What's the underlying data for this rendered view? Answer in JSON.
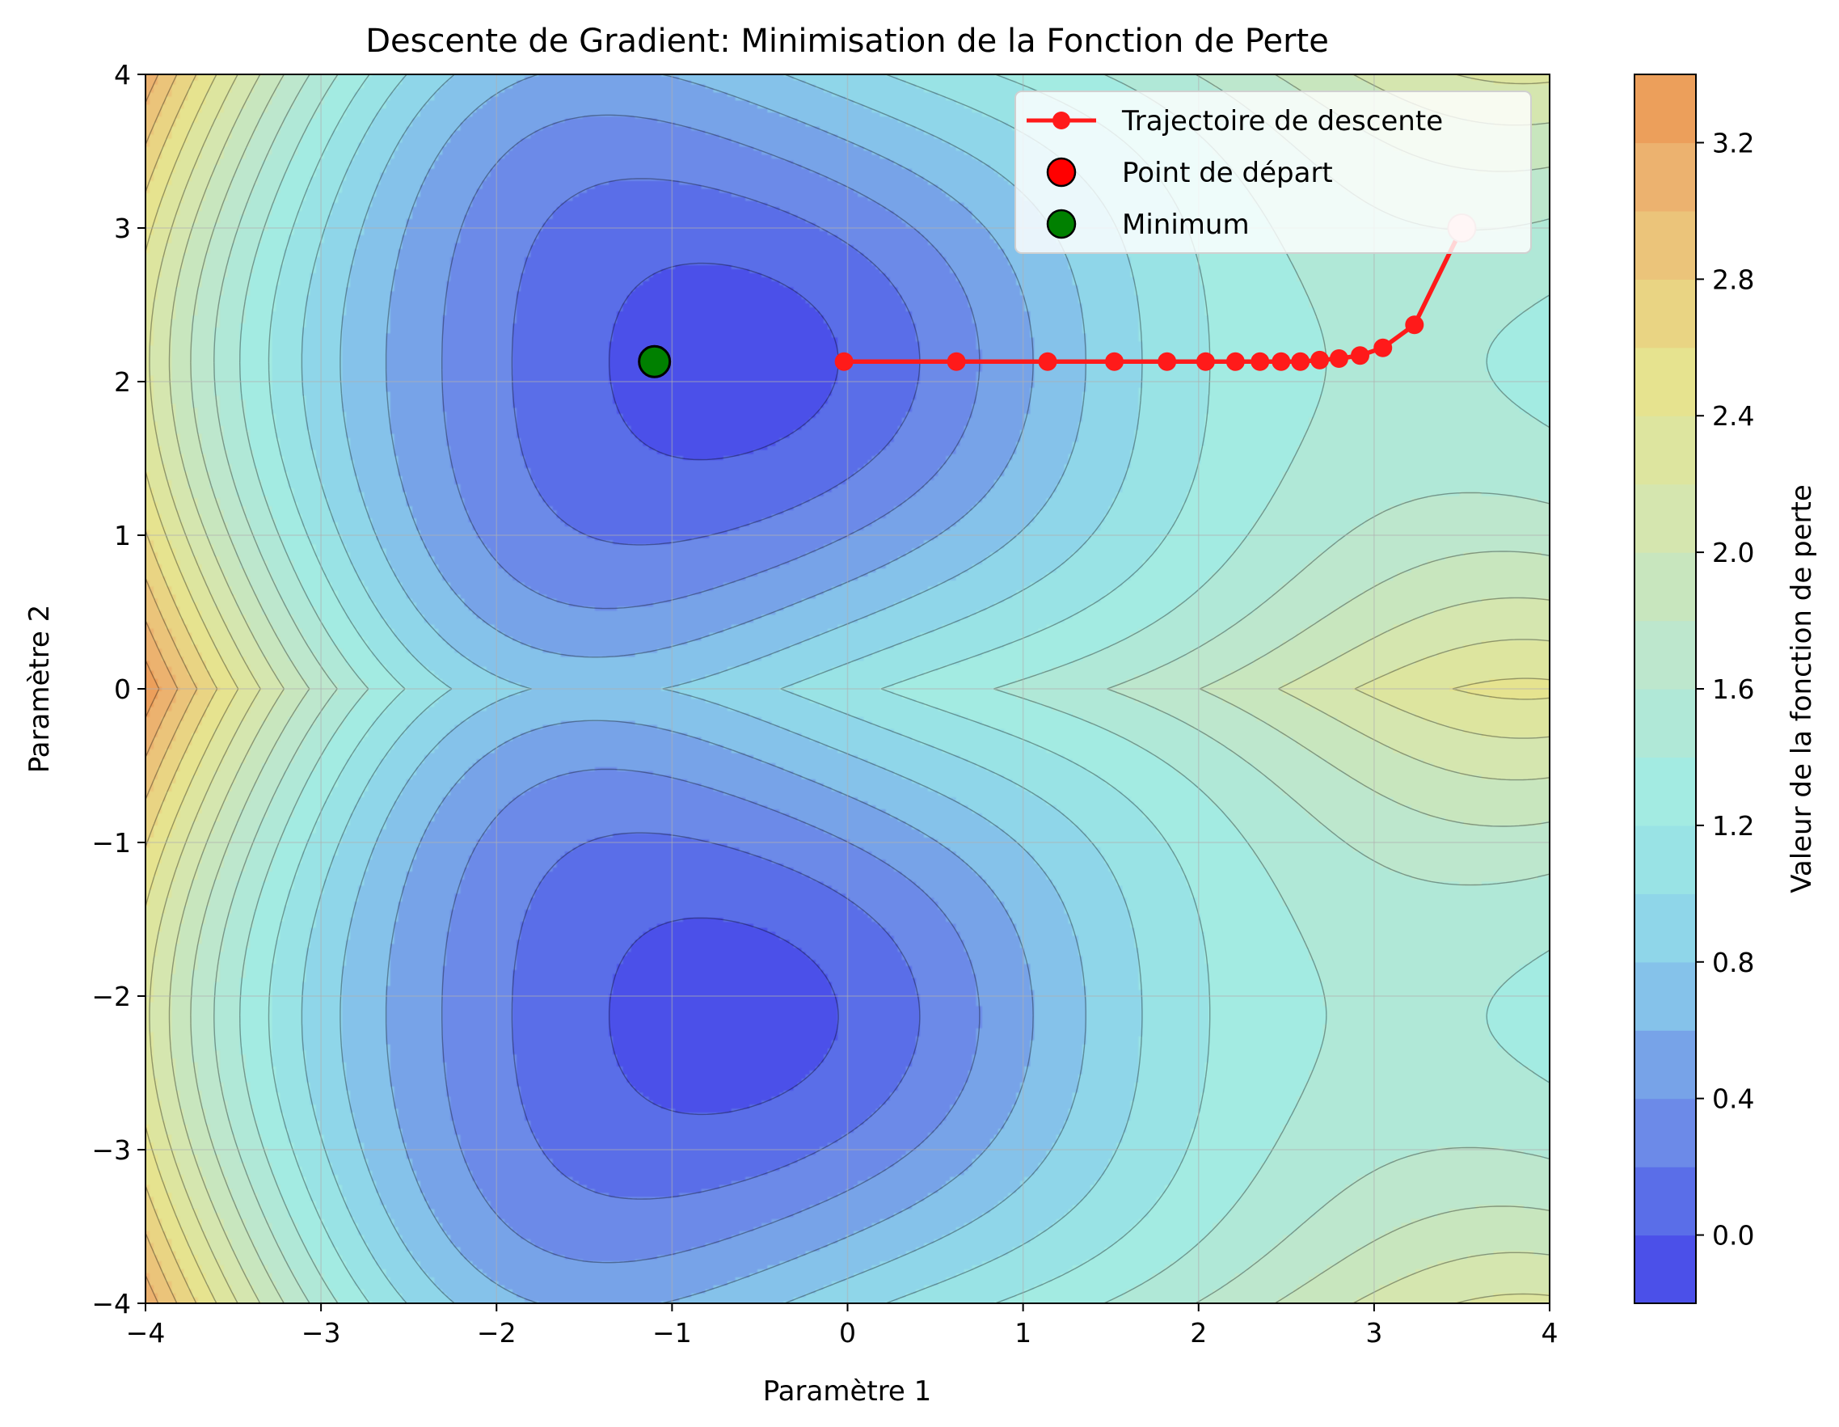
{
  "chart_data": {
    "type": "contour",
    "title": "Descente de Gradient: Minimisation de la Fonction de Perte",
    "xlabel": "Paramètre 1",
    "ylabel": "Paramètre 2",
    "xlim": [
      -4,
      4
    ],
    "ylim": [
      -4,
      4
    ],
    "xticks": [
      -4,
      -3,
      -2,
      -1,
      0,
      1,
      2,
      3,
      4
    ],
    "yticks": [
      -4,
      -3,
      -2,
      -1,
      0,
      1,
      2,
      3,
      4
    ],
    "grid": true,
    "legend_position": "top-right",
    "colorbar": {
      "label": "Valeur de la fonction de perte",
      "range": [
        -0.2,
        3.4
      ],
      "ticks": [
        0.0,
        0.4,
        0.8,
        1.2,
        1.6,
        2.0,
        2.4,
        2.8,
        3.2
      ],
      "levels": [
        -0.2,
        0.0,
        0.2,
        0.4,
        0.6,
        0.8,
        1.0,
        1.2,
        1.4,
        1.6,
        1.8,
        2.0,
        2.2,
        2.4,
        2.6,
        2.8,
        3.0,
        3.2,
        3.4
      ],
      "colors": [
        "#4b50e9",
        "#5a6ee8",
        "#6c8ae8",
        "#77a3e8",
        "#85c2ea",
        "#8fd6e9",
        "#99e3e5",
        "#a3ebe2",
        "#b0e8d7",
        "#bde7cd",
        "#c8e6be",
        "#d5e6af",
        "#dde59f",
        "#e6e38f",
        "#e9d483",
        "#ebc47a",
        "#ecb26f",
        "#ec9f5b"
      ]
    },
    "surface_min_value": -0.1,
    "surface_max_value": 3.35,
    "series": [
      {
        "name": "Trajectoire de descente",
        "color": "#ff1a1a",
        "x": [
          3.5,
          3.23,
          3.05,
          2.92,
          2.8,
          2.69,
          2.58,
          2.47,
          2.35,
          2.21,
          2.04,
          1.82,
          1.52,
          1.14,
          0.62,
          -0.02
        ],
        "y": [
          3.0,
          2.37,
          2.22,
          2.17,
          2.15,
          2.14,
          2.13,
          2.13,
          2.13,
          2.13,
          2.13,
          2.13,
          2.13,
          2.13,
          2.13,
          2.13
        ]
      },
      {
        "name": "Point de départ",
        "color": "#ff0000",
        "x": [
          3.5
        ],
        "y": [
          3.0
        ]
      },
      {
        "name": "Minimum",
        "color": "#008000",
        "x": [
          -1.1
        ],
        "y": [
          2.13
        ]
      }
    ]
  }
}
